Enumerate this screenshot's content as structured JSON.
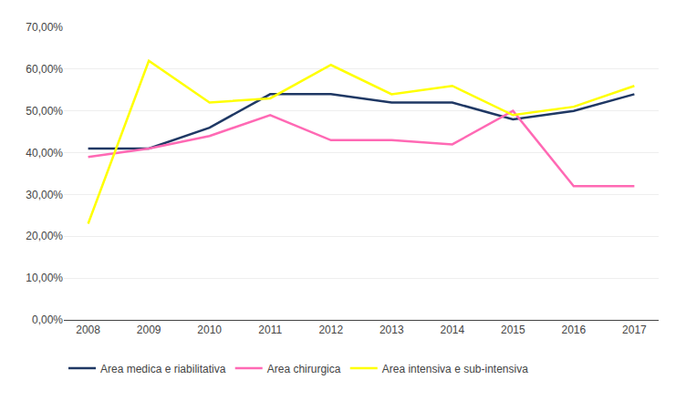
{
  "chart_data": {
    "type": "line",
    "x": [
      2008,
      2009,
      2010,
      2011,
      2012,
      2013,
      2014,
      2015,
      2016,
      2017
    ],
    "series": [
      {
        "name": "Area medica e riabilitativa",
        "color": "#1F3864",
        "values": [
          0.41,
          0.41,
          0.46,
          0.54,
          0.54,
          0.52,
          0.52,
          0.48,
          0.5,
          0.54
        ]
      },
      {
        "name": "Area chirurgica",
        "color": "#FF69B4",
        "values": [
          0.39,
          0.41,
          0.44,
          0.49,
          0.43,
          0.43,
          0.42,
          0.5,
          0.32,
          0.32
        ]
      },
      {
        "name": "Area intensiva e sub-intensiva",
        "color": "#FFFF00",
        "values": [
          0.23,
          0.62,
          0.52,
          0.53,
          0.61,
          0.54,
          0.56,
          0.49,
          0.51,
          0.56
        ]
      }
    ],
    "xlim": [
      2007.6,
      2017.4
    ],
    "xticks": [
      2008,
      2009,
      2010,
      2011,
      2012,
      2013,
      2014,
      2015,
      2016,
      2017
    ],
    "ylim": [
      0.0,
      0.7
    ],
    "yticks": [
      {
        "value": 0.0,
        "label": "0,00%"
      },
      {
        "value": 0.1,
        "label": "10,00%"
      },
      {
        "value": 0.2,
        "label": "20,00%"
      },
      {
        "value": 0.3,
        "label": "30,00%"
      },
      {
        "value": 0.4,
        "label": "40,00%"
      },
      {
        "value": 0.5,
        "label": "50,00%"
      },
      {
        "value": 0.6,
        "label": "60,00%"
      },
      {
        "value": 0.7,
        "label": "70,00%"
      }
    ],
    "grid": "y",
    "legend": "bottom"
  }
}
